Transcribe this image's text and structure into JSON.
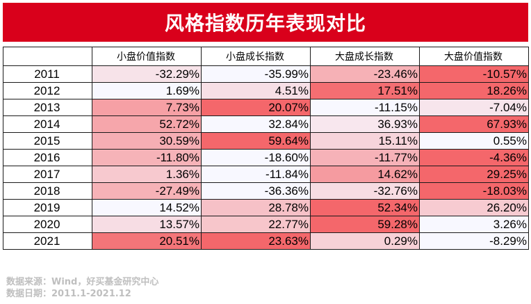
{
  "title": "风格指数历年表现对比",
  "chart_data": {
    "type": "table",
    "columns": [
      "小盘价值指数",
      "小盘成长指数",
      "大盘成长指数",
      "大盘价值指数"
    ],
    "rows": [
      {
        "year": "2011",
        "values": [
          -32.29,
          -35.99,
          -23.46,
          -10.57
        ]
      },
      {
        "year": "2012",
        "values": [
          1.69,
          4.51,
          17.51,
          18.26
        ]
      },
      {
        "year": "2013",
        "values": [
          7.73,
          20.07,
          -11.15,
          -7.04
        ]
      },
      {
        "year": "2014",
        "values": [
          52.72,
          32.84,
          36.93,
          67.93
        ]
      },
      {
        "year": "2015",
        "values": [
          30.59,
          59.64,
          15.11,
          0.55
        ]
      },
      {
        "year": "2016",
        "values": [
          -11.8,
          -18.6,
          -11.77,
          -4.36
        ]
      },
      {
        "year": "2017",
        "values": [
          1.36,
          -11.84,
          14.62,
          29.25
        ]
      },
      {
        "year": "2018",
        "values": [
          -27.49,
          -36.36,
          -32.76,
          -18.03
        ]
      },
      {
        "year": "2019",
        "values": [
          14.52,
          28.78,
          52.34,
          26.2
        ]
      },
      {
        "year": "2020",
        "values": [
          13.57,
          22.77,
          59.28,
          3.26
        ]
      },
      {
        "year": "2021",
        "values": [
          20.51,
          23.63,
          0.29,
          -8.29
        ]
      }
    ],
    "unit": "%",
    "colors": {
      "high": "#f4676b",
      "low": "#f8f8ff",
      "title_bg": "#d9001b"
    }
  },
  "footer": {
    "source": "数据来源：Wind，好买基金研究中心",
    "period": "数据日期：2011.1-2021.12"
  }
}
